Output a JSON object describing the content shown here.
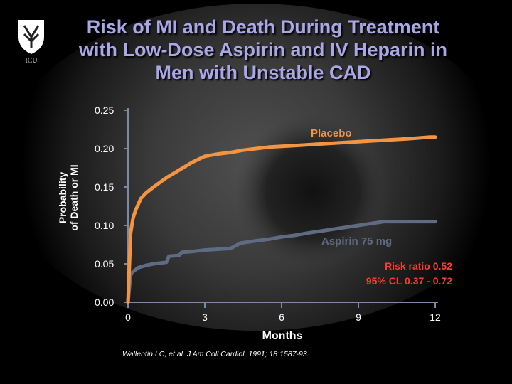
{
  "slide": {
    "title_lines": [
      "Risk of MI and Death During Treatment",
      "with Low-Dose Aspirin and IV Heparin in",
      "Men with Unstable CAD"
    ],
    "logo_text": "ICU",
    "footnote": "Wallentin LC, et al. J Am Coll Cardiol, 1991; 18:1587-93.",
    "colors": {
      "title": "#a9a7e8",
      "placebo": "#f39443",
      "aspirin": "#5f6b83",
      "risk_note": "#ff3b2f",
      "axis": "#7d8aa6"
    }
  },
  "chart_data": {
    "type": "line",
    "title": "Risk of MI and Death During Treatment with Low-Dose Aspirin and IV Heparin in Men with Unstable CAD",
    "xlabel": "Months",
    "ylabel_lines": [
      "Probability",
      "of Death or MI"
    ],
    "xlim": [
      0,
      12
    ],
    "ylim": [
      0,
      0.25
    ],
    "x_ticks": [
      "0",
      "3",
      "6",
      "9",
      "12"
    ],
    "y_ticks": [
      "0.00",
      "0.05",
      "0.10",
      "0.15",
      "0.20",
      "0.25"
    ],
    "grid": false,
    "series": [
      {
        "name": "Placebo",
        "label": "Placebo",
        "x": [
          0,
          0.1,
          0.2,
          0.3,
          0.5,
          0.7,
          1.0,
          1.5,
          2.0,
          2.5,
          3.0,
          3.5,
          4.0,
          4.5,
          5.0,
          5.5,
          6.0,
          6.5,
          7.0,
          8.0,
          9.0,
          10.0,
          11.0,
          11.8,
          12.0
        ],
        "y": [
          0.0,
          0.09,
          0.11,
          0.12,
          0.135,
          0.142,
          0.15,
          0.162,
          0.172,
          0.182,
          0.19,
          0.193,
          0.195,
          0.198,
          0.2,
          0.202,
          0.203,
          0.204,
          0.205,
          0.207,
          0.209,
          0.211,
          0.213,
          0.215,
          0.215
        ]
      },
      {
        "name": "Aspirin 75 mg",
        "label": "Aspirin 75 mg",
        "x": [
          0,
          0.1,
          0.2,
          0.4,
          0.7,
          1.0,
          1.5,
          1.6,
          2.0,
          2.1,
          2.5,
          3.0,
          3.5,
          4.0,
          4.4,
          5.0,
          5.5,
          6.0,
          6.5,
          7.0,
          8.0,
          9.0,
          10.0,
          11.0,
          12.0
        ],
        "y": [
          0.0,
          0.035,
          0.04,
          0.045,
          0.048,
          0.05,
          0.052,
          0.06,
          0.061,
          0.065,
          0.066,
          0.068,
          0.069,
          0.07,
          0.077,
          0.08,
          0.082,
          0.085,
          0.087,
          0.09,
          0.095,
          0.1,
          0.105,
          0.105,
          0.105
        ]
      }
    ],
    "annotations": {
      "risk_ratio": "Risk ratio 0.52",
      "ci": "95% CL 0.37 - 0.72"
    }
  }
}
